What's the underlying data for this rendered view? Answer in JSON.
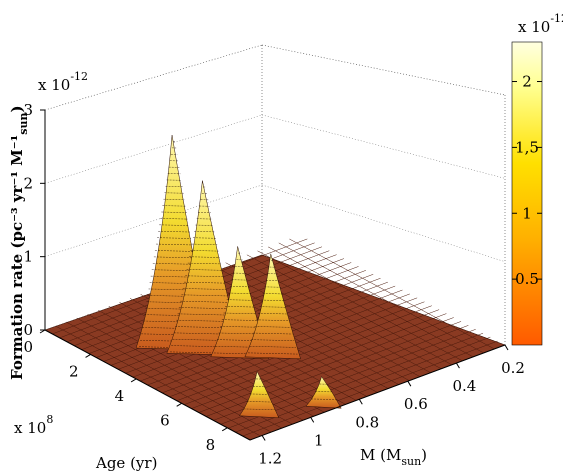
{
  "chart_data": {
    "type": "surface",
    "title": "",
    "zlabel": "Formation rate (pc⁻³ yr⁻¹ M⁻¹",
    "zlabel_sub": "sun",
    "zlabel_close": ")",
    "z_multiplier": "x 10",
    "z_multiplier_exp": "-12",
    "z_ticks": [
      "0",
      "1",
      "2",
      "3"
    ],
    "zlim": [
      0,
      3e-12
    ],
    "age_label": "Age (yr)",
    "age_multiplier": "x 10",
    "age_multiplier_exp": "8",
    "age_ticks": [
      "0",
      "2",
      "4",
      "6",
      "8"
    ],
    "age_lim": [
      0,
      900000000.0
    ],
    "mass_label": "M (M",
    "mass_label_sub": "sun",
    "mass_label_close": ")",
    "mass_ticks": [
      "0.2",
      "0.4",
      "0.6",
      "0.8",
      "1",
      "1.2"
    ],
    "mass_lim": [
      0.2,
      1.25
    ],
    "colorbar": {
      "multiplier": "x 10",
      "multiplier_exp": "-12",
      "ticks": [
        "0.5",
        "1",
        "1,5",
        "2"
      ],
      "range": [
        0,
        2.3e-12
      ]
    },
    "colormap": "hot",
    "peaks": [
      {
        "age": 300000000.0,
        "mass": 1.0,
        "value": 2.85e-12
      },
      {
        "age": 380000000.0,
        "mass": 0.95,
        "value": 2.3e-12
      },
      {
        "age": 460000000.0,
        "mass": 0.88,
        "value": 1.45e-12
      },
      {
        "age": 520000000.0,
        "mass": 0.8,
        "value": 1.35e-12
      },
      {
        "age": 780000000.0,
        "mass": 1.1,
        "value": 5.5e-13
      },
      {
        "age": 850000000.0,
        "mass": 0.9,
        "value": 3.5e-13
      }
    ],
    "grid": true
  },
  "colors": {
    "cb_top": "#ffffc0",
    "cb_mid": "#ffd400",
    "cb_low": "#ff5a00",
    "floor": "#8a3a22"
  }
}
